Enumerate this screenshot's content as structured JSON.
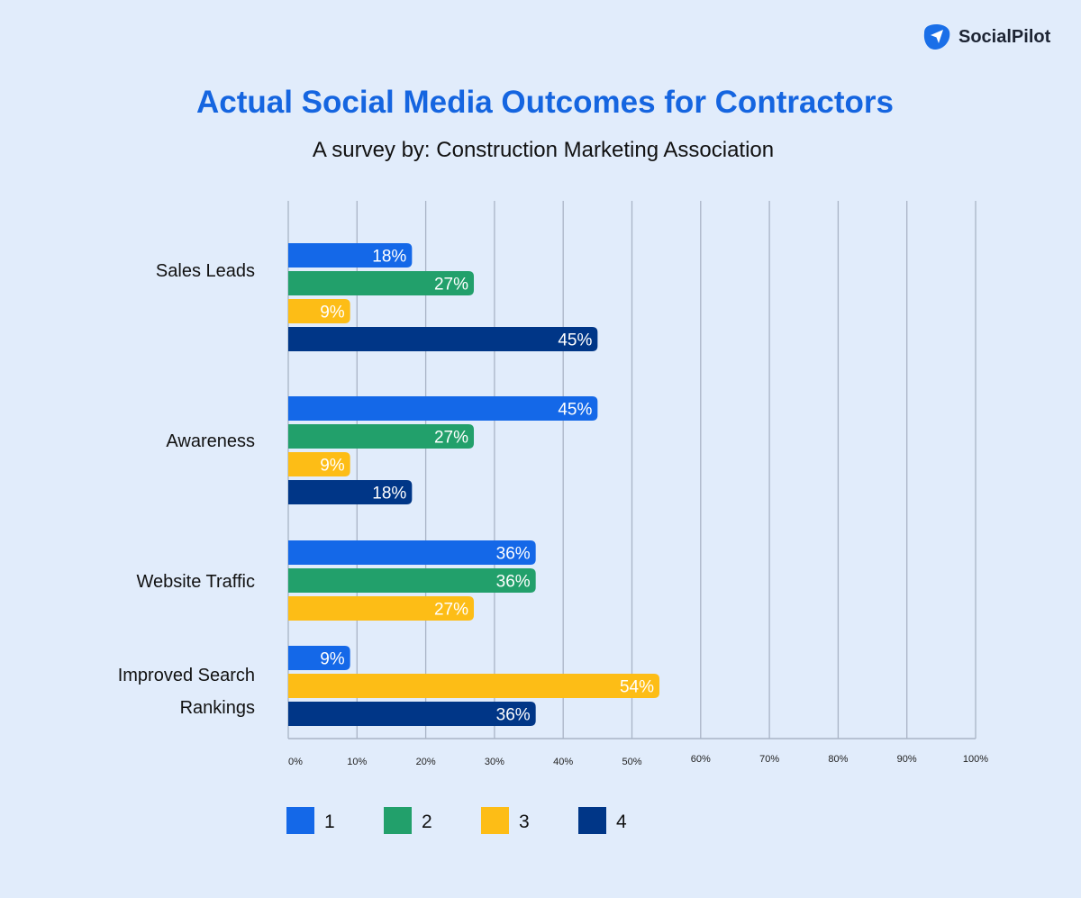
{
  "logo": {
    "text": "SocialPilot",
    "icon": "paper-plane-icon",
    "color": "#1a6fe8"
  },
  "chart_data": {
    "type": "bar",
    "orientation": "horizontal",
    "title": "Actual Social Media Outcomes for Contractors",
    "subtitle": "A survey by: Construction Marketing Association",
    "categories": [
      "Sales Leads",
      "Awareness",
      "Website Traffic",
      "Improved Search Rankings"
    ],
    "series": [
      {
        "name": "1",
        "color": "#1468e8",
        "values": [
          18,
          45,
          36,
          9
        ]
      },
      {
        "name": "2",
        "color": "#22a06b",
        "values": [
          27,
          27,
          36,
          null
        ]
      },
      {
        "name": "3",
        "color": "#fdbd16",
        "values": [
          9,
          9,
          27,
          54
        ]
      },
      {
        "name": "4",
        "color": "#003687",
        "values": [
          45,
          18,
          null,
          36
        ]
      }
    ],
    "data_label_suffix": "%",
    "xlim": [
      0,
      100
    ],
    "xticks": [
      "0%",
      "10%",
      "20%",
      "30%",
      "40%",
      "50%",
      "60%",
      "70%",
      "80%",
      "90%",
      "100%"
    ],
    "grid": true,
    "legend": "bottom"
  }
}
